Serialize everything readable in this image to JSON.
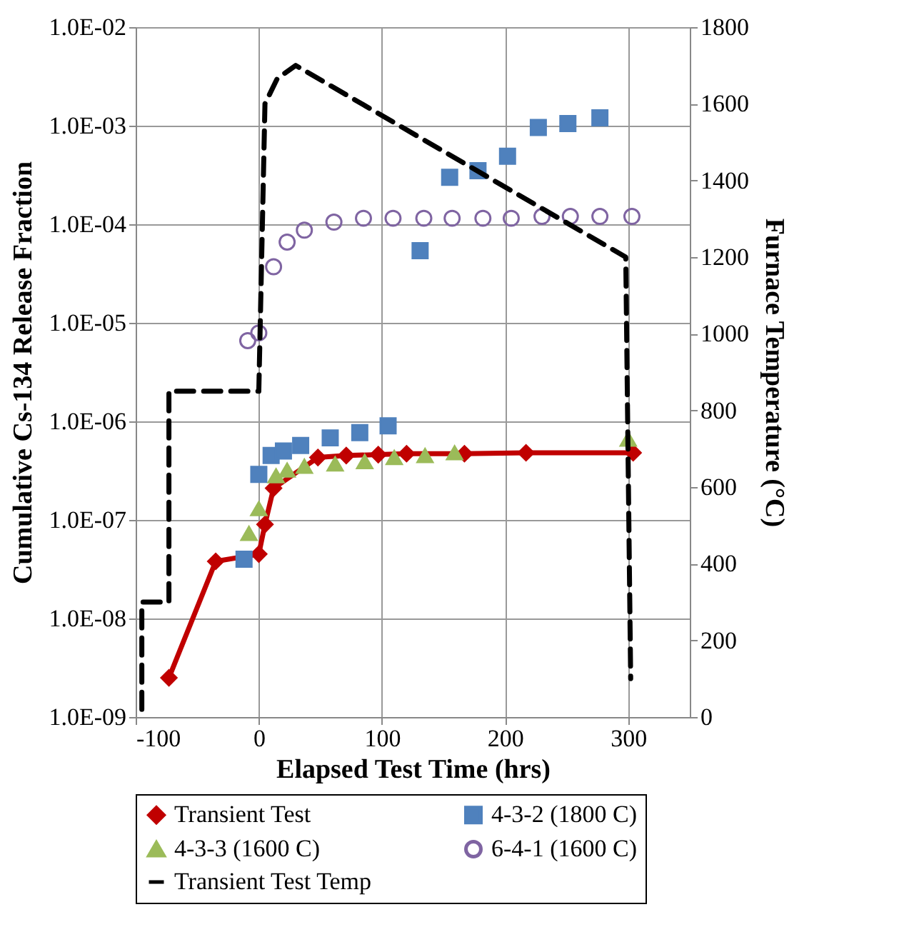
{
  "chart_data": {
    "type": "scatter",
    "xlabel": "Elapsed Test Time (hrs)",
    "ylabel": "Cumulative Cs-134 Release Fraction",
    "y2label": "Furnace Temperature (°C)",
    "xlim": [
      -100,
      350
    ],
    "xticks": [
      -100,
      0,
      100,
      200,
      300
    ],
    "ylim": [
      1e-09,
      0.01
    ],
    "yticks": [
      {
        "value": 1e-09,
        "label": "1.0E-09"
      },
      {
        "value": 1e-08,
        "label": "1.0E-08"
      },
      {
        "value": 1e-07,
        "label": "1.0E-07"
      },
      {
        "value": 1e-06,
        "label": "1.0E-06"
      },
      {
        "value": 1e-05,
        "label": "1.0E-05"
      },
      {
        "value": 0.0001,
        "label": "1.0E-04"
      },
      {
        "value": 0.001,
        "label": "1.0E-03"
      },
      {
        "value": 0.01,
        "label": "1.0E-02"
      }
    ],
    "y2lim": [
      0,
      1800
    ],
    "y2ticks": [
      0,
      200,
      400,
      600,
      800,
      1000,
      1200,
      1400,
      1600,
      1800
    ],
    "log": "y",
    "grid": true,
    "legend": "bottom",
    "series": [
      {
        "name": "Transient Test",
        "type": "line",
        "marker": "diamond",
        "line_style": "solid",
        "color": "#c00000",
        "x": [
          -73,
          -35,
          0,
          5,
          12,
          20,
          48,
          71,
          97,
          120,
          167,
          217,
          304
        ],
        "values": [
          2.5e-09,
          3.8e-08,
          4.5e-08,
          9e-08,
          2.1e-07,
          null,
          4.3e-07,
          4.5e-07,
          4.6e-07,
          4.7e-07,
          4.7e-07,
          4.8e-07,
          4.8e-07
        ]
      },
      {
        "name": "4-3-2 (1800 C)",
        "type": "scatter",
        "marker": "square",
        "color": "#4f81bd",
        "x": [
          -12,
          0,
          10,
          20,
          34,
          58,
          82,
          105,
          131,
          155,
          178,
          202,
          227,
          251,
          277
        ],
        "values": [
          4e-08,
          2.9e-07,
          4.5e-07,
          5e-07,
          5.7e-07,
          6.8e-07,
          7.7e-07,
          9e-07,
          5.4e-05,
          0.0003,
          0.00035,
          0.00049,
          0.00096,
          0.00105,
          0.0012
        ]
      },
      {
        "name": "4-3-3 (1600 C)",
        "type": "scatter",
        "marker": "triangle",
        "color": "#9bbb59",
        "x": [
          -8,
          0,
          14,
          23,
          37,
          62,
          86,
          110,
          135,
          159,
          300
        ],
        "values": [
          7.3e-08,
          1.3e-07,
          2.8e-07,
          3.2e-07,
          3.5e-07,
          3.7e-07,
          3.9e-07,
          4.3e-07,
          4.5e-07,
          4.8e-07,
          6.6e-07
        ]
      },
      {
        "name": "6-4-1 (1600 C)",
        "type": "scatter",
        "marker": "circle",
        "color": "#7f64a2",
        "x": [
          -9,
          0,
          12,
          23,
          37,
          61,
          85,
          109,
          134,
          157,
          182,
          205,
          230,
          253,
          277,
          303
        ],
        "values": [
          6.6e-06,
          7.9e-06,
          3.7e-05,
          6.6e-05,
          8.7e-05,
          0.000105,
          0.000115,
          0.000115,
          0.000115,
          0.000115,
          0.000115,
          0.000115,
          0.00012,
          0.00012,
          0.00012,
          0.00012
        ]
      },
      {
        "name": "Transient Test Temp",
        "type": "line",
        "axis": "y2",
        "marker": "none",
        "line_style": "dashed",
        "color": "#000000",
        "x": [
          -95,
          -95,
          -73,
          -73,
          0,
          5,
          15,
          30,
          298,
          302
        ],
        "values": [
          20,
          300,
          300,
          850,
          850,
          1600,
          1666,
          1700,
          1200,
          100
        ]
      }
    ]
  }
}
